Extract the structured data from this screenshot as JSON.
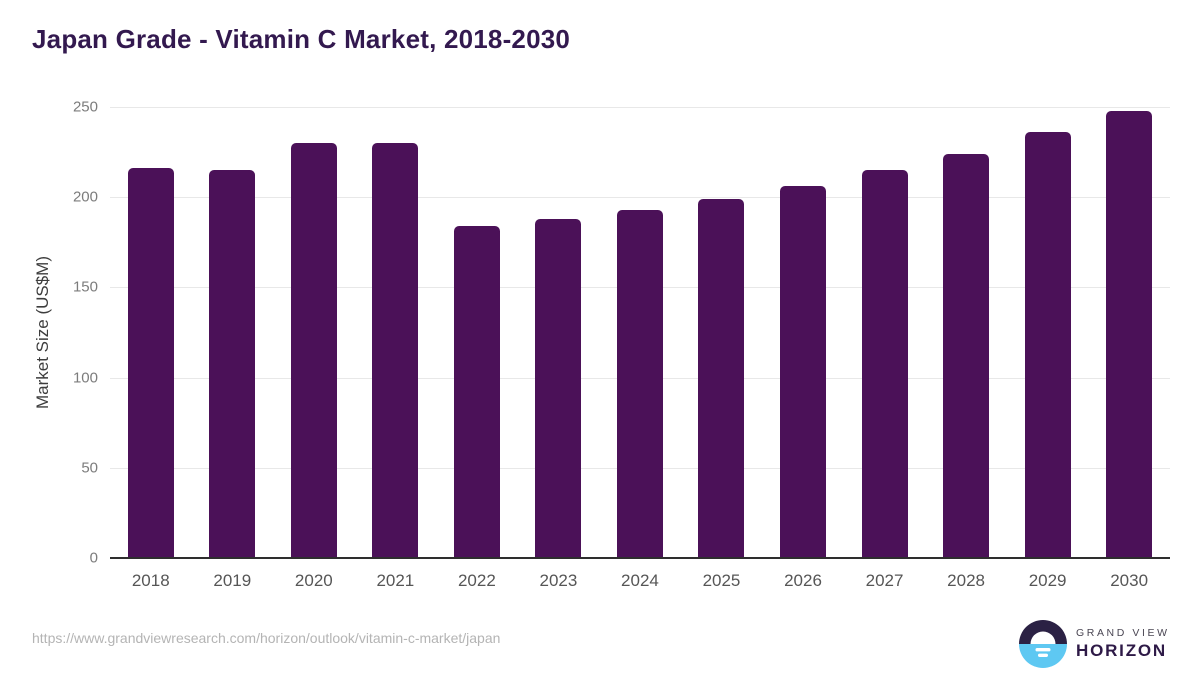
{
  "title": "Japan Grade - Vitamin C Market, 2018-2030",
  "footer": {
    "source_url": "https://www.grandviewresearch.com/horizon/outlook/vitamin-c-market/japan",
    "brand_line1": "GRAND VIEW",
    "brand_line2": "HORIZON"
  },
  "colors": {
    "bar": "#4b1158",
    "title": "#33194f",
    "grid": "#e8e8e8",
    "axis": "#2e2e2e",
    "tick": "#7c7c7c",
    "xlabel": "#565656",
    "ylabel": "#3d3d3d",
    "url": "#b4b4b4",
    "brand_top": "#4a4653",
    "brand_bottom": "#2e1a47",
    "logo_dark": "#2b2144",
    "logo_blue": "#5ec8f2"
  },
  "chart_data": {
    "type": "bar",
    "title": "Japan Grade - Vitamin C Market, 2018-2030",
    "categories": [
      "2018",
      "2019",
      "2020",
      "2021",
      "2022",
      "2023",
      "2024",
      "2025",
      "2026",
      "2027",
      "2028",
      "2029",
      "2030"
    ],
    "values": [
      216,
      215,
      230,
      230,
      184,
      188,
      193,
      199,
      206,
      215,
      224,
      236,
      248
    ],
    "xlabel": "",
    "ylabel": "Market Size (US$M)",
    "ylim": [
      0,
      250
    ],
    "yticks": [
      0,
      50,
      100,
      150,
      200,
      250
    ],
    "grid": "horizontal-only",
    "legend": "none",
    "bar_color": "#4b1158"
  }
}
